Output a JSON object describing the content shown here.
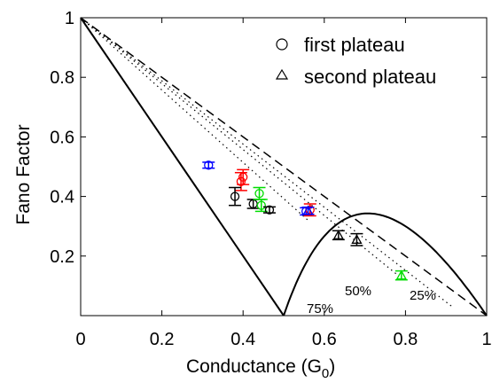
{
  "chart_data": {
    "type": "scatter",
    "xlabel": "Conductance (G",
    "xlabel_sub": "0",
    "xlabel_close": ")",
    "ylabel": "Fano Factor",
    "xlim": [
      0,
      1
    ],
    "ylim": [
      0,
      1
    ],
    "xticks": [
      "0",
      "0.2",
      "0.4",
      "0.6",
      "0.8",
      "1"
    ],
    "yticks": [
      {
        "v": 0.2,
        "label": "0.2"
      },
      {
        "v": 0.4,
        "label": "0.4"
      },
      {
        "v": 0.6,
        "label": "0.6"
      },
      {
        "v": 0.8,
        "label": "0.8"
      },
      {
        "v": 1,
        "label": "1"
      }
    ],
    "grid": false,
    "legend": {
      "placement": "top-right",
      "entries": [
        {
          "marker": "circle",
          "label": "first plateau"
        },
        {
          "marker": "triangle",
          "label": "second plateau"
        }
      ]
    },
    "curve_labels": [
      "75%",
      "50%",
      "25%"
    ],
    "points": [
      {
        "plateau": "first",
        "color": "#0000ff",
        "x": 0.315,
        "y": 0.505,
        "err": 0.01
      },
      {
        "plateau": "first",
        "color": "#ff0000",
        "x": 0.395,
        "y": 0.45,
        "err": 0.03
      },
      {
        "plateau": "first",
        "color": "#ff0000",
        "x": 0.4,
        "y": 0.465,
        "err": 0.025
      },
      {
        "plateau": "first",
        "color": "#000000",
        "x": 0.38,
        "y": 0.4,
        "err": 0.03
      },
      {
        "plateau": "first",
        "color": "#000000",
        "x": 0.425,
        "y": 0.375,
        "err": 0.015
      },
      {
        "plateau": "first",
        "color": "#00dd00",
        "x": 0.44,
        "y": 0.41,
        "err": 0.02
      },
      {
        "plateau": "first",
        "color": "#00dd00",
        "x": 0.445,
        "y": 0.37,
        "err": 0.02
      },
      {
        "plateau": "first",
        "color": "#000000",
        "x": 0.465,
        "y": 0.355,
        "err": 0.01
      },
      {
        "plateau": "first",
        "color": "#0000ff",
        "x": 0.555,
        "y": 0.35,
        "err": 0.012
      },
      {
        "plateau": "first",
        "color": "#ff0000",
        "x": 0.565,
        "y": 0.355,
        "err": 0.02
      },
      {
        "plateau": "second",
        "color": "#0000ff",
        "x": 0.56,
        "y": 0.352,
        "err": 0.012
      },
      {
        "plateau": "second",
        "color": "#000000",
        "x": 0.635,
        "y": 0.27,
        "err": 0.015
      },
      {
        "plateau": "second",
        "color": "#000000",
        "x": 0.68,
        "y": 0.255,
        "err": 0.02
      },
      {
        "plateau": "second",
        "color": "#00dd00",
        "x": 0.79,
        "y": 0.135,
        "err": 0.015
      }
    ]
  }
}
